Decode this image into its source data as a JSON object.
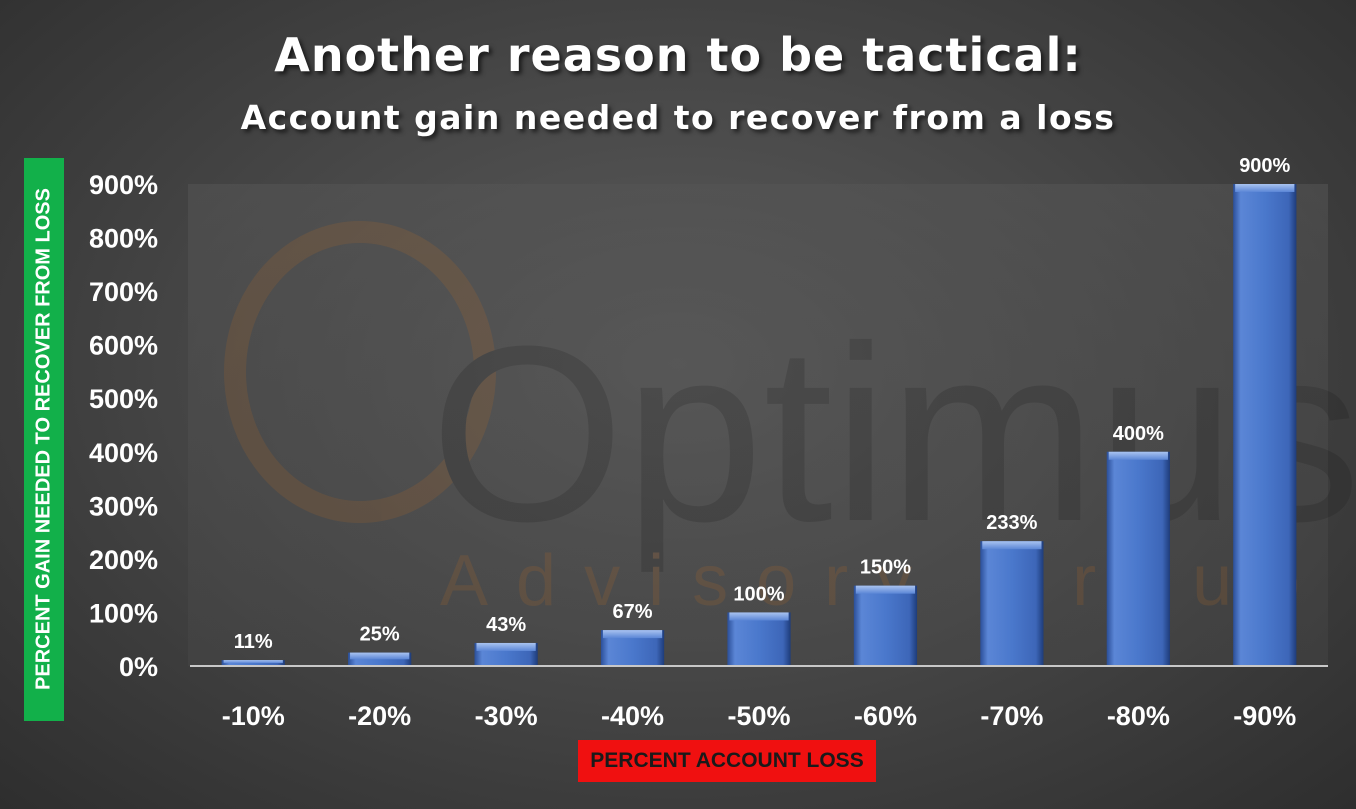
{
  "chart_data": {
    "type": "bar",
    "title": "Another reason to be tactical:",
    "subtitle": "Account gain needed to recover from a loss",
    "xlabel": "PERCENT ACCOUNT LOSS",
    "ylabel": "PERCENT GAIN NEEDED TO RECOVER FROM LOSS",
    "categories": [
      "-10%",
      "-20%",
      "-30%",
      "-40%",
      "-50%",
      "-60%",
      "-70%",
      "-80%",
      "-90%"
    ],
    "values": [
      11,
      25,
      43,
      67,
      100,
      150,
      233,
      400,
      900
    ],
    "data_labels": [
      "11%",
      "25%",
      "43%",
      "67%",
      "100%",
      "150%",
      "233%",
      "400%",
      "900%"
    ],
    "yticks": [
      "0%",
      "100%",
      "200%",
      "300%",
      "400%",
      "500%",
      "600%",
      "700%",
      "800%",
      "900%"
    ],
    "ylim": [
      0,
      900
    ],
    "grid": false,
    "legend": "none",
    "colors": {
      "bar": "#4472c4",
      "ylabel_box": "#12b04a",
      "xlabel_box": "#f01010"
    }
  },
  "watermark": {
    "text_main": "Optimus",
    "text_sub": "Advisory Group"
  }
}
